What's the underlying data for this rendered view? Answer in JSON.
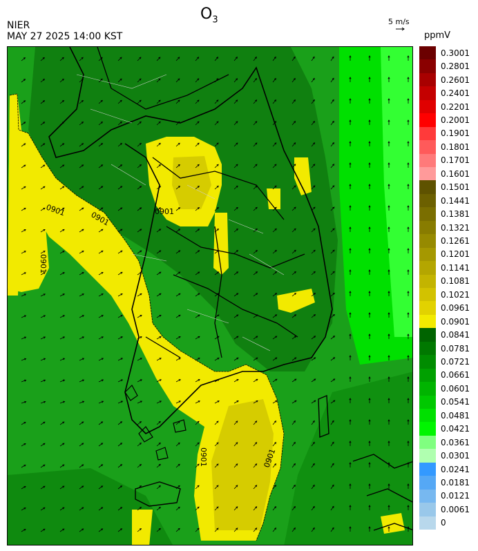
{
  "header": {
    "agency": "NIER",
    "timestamp": "MAY 27 2025 14:00 KST",
    "species": "O",
    "species_subscript": "3"
  },
  "wind_reference": {
    "label": "5 m/s"
  },
  "legend": {
    "unit": "ppmV",
    "levels": [
      {
        "label": "0.3001",
        "color": "#6b0000"
      },
      {
        "label": "0.2801",
        "color": "#8a0000"
      },
      {
        "label": "0.2601",
        "color": "#a80000"
      },
      {
        "label": "0.2401",
        "color": "#c40000"
      },
      {
        "label": "0.2201",
        "color": "#e00000"
      },
      {
        "label": "0.2001",
        "color": "#ff0000"
      },
      {
        "label": "0.1901",
        "color": "#ff3a3a"
      },
      {
        "label": "0.1801",
        "color": "#ff5a5a"
      },
      {
        "label": "0.1701",
        "color": "#ff7a7a"
      },
      {
        "label": "0.1601",
        "color": "#ff9a9a"
      },
      {
        "label": "0.1501",
        "color": "#5e5200"
      },
      {
        "label": "0.1441",
        "color": "#6c6000"
      },
      {
        "label": "0.1381",
        "color": "#7a6e00"
      },
      {
        "label": "0.1321",
        "color": "#887c00"
      },
      {
        "label": "0.1261",
        "color": "#968a00"
      },
      {
        "label": "0.1201",
        "color": "#a59800"
      },
      {
        "label": "0.1141",
        "color": "#b4a600"
      },
      {
        "label": "0.1081",
        "color": "#c3b400"
      },
      {
        "label": "0.1021",
        "color": "#d2c200"
      },
      {
        "label": "0.0961",
        "color": "#e2d200"
      },
      {
        "label": "0.0901",
        "color": "#f2ea00"
      },
      {
        "label": "0.0841",
        "color": "#006400"
      },
      {
        "label": "0.0781",
        "color": "#007800"
      },
      {
        "label": "0.0721",
        "color": "#008c00"
      },
      {
        "label": "0.0661",
        "color": "#00a000"
      },
      {
        "label": "0.0601",
        "color": "#00b400"
      },
      {
        "label": "0.0541",
        "color": "#00c800"
      },
      {
        "label": "0.0481",
        "color": "#00e000"
      },
      {
        "label": "0.0421",
        "color": "#00f500"
      },
      {
        "label": "0.0361",
        "color": "#80ff80"
      },
      {
        "label": "0.0301",
        "color": "#b0ffb0"
      },
      {
        "label": "0.0241",
        "color": "#3399ff"
      },
      {
        "label": "0.0181",
        "color": "#55a8f5"
      },
      {
        "label": "0.0121",
        "color": "#77b8f0"
      },
      {
        "label": "0.0061",
        "color": "#99c8ea"
      },
      {
        "label": "0",
        "color": "#b8d8ec"
      }
    ]
  },
  "map": {
    "contour_label": "0901",
    "colors": {
      "background": "#1aa01a",
      "high_ozone": "#f2ea00",
      "high_ozone_dark": "#d6cc00",
      "low_east_sea": "#00e000",
      "very_low_east": "#33ff33",
      "land_dark": "#108010"
    }
  }
}
